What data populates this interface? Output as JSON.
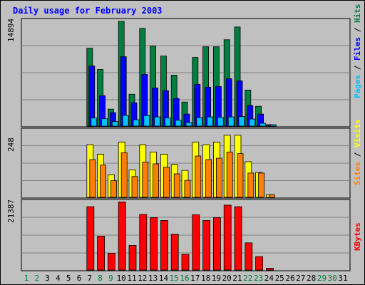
{
  "chart_data": {
    "type": "bar",
    "title": "Daily usage for February 2003",
    "categories": [
      "1",
      "2",
      "3",
      "4",
      "5",
      "6",
      "7",
      "8",
      "9",
      "10",
      "11",
      "12",
      "13",
      "14",
      "15",
      "16",
      "17",
      "18",
      "19",
      "20",
      "21",
      "22",
      "23",
      "24",
      "25",
      "26",
      "27",
      "28",
      "29",
      "30",
      "31"
    ],
    "weekend_days": [
      "1",
      "2",
      "8",
      "9",
      "15",
      "16",
      "22",
      "23",
      "29",
      "30"
    ],
    "panels": [
      {
        "name": "hits-files-pages",
        "ymax_label": "14894",
        "ymax": 14894,
        "grid": true,
        "legend": [
          {
            "text": "Pages",
            "color": "#00c0ff"
          },
          {
            "text": " / ",
            "color": "#000000"
          },
          {
            "text": "Files",
            "color": "#0000ff"
          },
          {
            "text": " / ",
            "color": "#000000"
          },
          {
            "text": "Hits",
            "color": "#008040"
          }
        ],
        "series": [
          {
            "name": "Hits",
            "color": "#008040",
            "values": [
              0,
              0,
              0,
              0,
              0,
              0,
              11000,
              8000,
              2400,
              14800,
              4500,
              13800,
              11300,
              9900,
              7200,
              3400,
              9700,
              11200,
              11200,
              12200,
              14000,
              5100,
              2800,
              150,
              0,
              0,
              0,
              0,
              0,
              0,
              0
            ]
          },
          {
            "name": "Files",
            "color": "#0000ff",
            "values": [
              0,
              0,
              0,
              0,
              0,
              0,
              8500,
              4300,
              1900,
              9800,
              3300,
              7300,
              5400,
              5000,
              3900,
              1700,
              5900,
              5500,
              5600,
              6700,
              6400,
              2900,
              1700,
              100,
              0,
              0,
              0,
              0,
              0,
              0,
              0
            ]
          },
          {
            "name": "Pages",
            "color": "#00c0ff",
            "values": [
              0,
              0,
              0,
              0,
              0,
              0,
              1150,
              1040,
              650,
              1520,
              900,
              1500,
              1300,
              1150,
              830,
              500,
              1200,
              1300,
              1220,
              1300,
              1350,
              1000,
              400,
              40,
              0,
              0,
              0,
              0,
              0,
              0,
              0
            ]
          }
        ]
      },
      {
        "name": "visits-sites",
        "ymax_label": "248",
        "ymax": 248,
        "grid": true,
        "legend": [
          {
            "text": "Sites",
            "color": "#ff8000"
          },
          {
            "text": " / ",
            "color": "#000000"
          },
          {
            "text": "Visits",
            "color": "#ffff00"
          }
        ],
        "series": [
          {
            "name": "Visits",
            "color": "#ffff00",
            "values": [
              0,
              0,
              0,
              0,
              0,
              0,
              195,
              160,
              84,
              205,
              102,
              195,
              168,
              160,
              122,
              100,
              205,
              195,
              205,
              230,
              230,
              132,
              92,
              10,
              0,
              0,
              0,
              0,
              0,
              0,
              0
            ]
          },
          {
            "name": "Sites",
            "color": "#ff8000",
            "values": [
              0,
              0,
              0,
              0,
              0,
              0,
              140,
              120,
              62,
              165,
              77,
              131,
              124,
              112,
              87,
              63,
              153,
              140,
              145,
              168,
              162,
              90,
              90,
              10,
              0,
              0,
              0,
              0,
              0,
              0,
              0
            ]
          }
        ]
      },
      {
        "name": "kbytes",
        "ymax_label": "21387",
        "ymax": 21387,
        "grid": true,
        "legend": [
          {
            "text": "KBytes",
            "color": "#ff0000"
          }
        ],
        "series": [
          {
            "name": "KBytes",
            "color": "#ff0000",
            "values": [
              0,
              0,
              0,
              0,
              0,
              0,
              19800,
              10600,
              5200,
              21300,
              7700,
              17400,
              16400,
              15500,
              11200,
              4900,
              17300,
              15500,
              16400,
              20300,
              19800,
              8500,
              4200,
              580,
              0,
              0,
              0,
              0,
              0,
              0,
              0
            ]
          }
        ]
      }
    ]
  },
  "colors": {
    "background": "#c0c0c0",
    "title": "#0000ff",
    "weekday_label": "#000000",
    "weekend_label": "#008040"
  }
}
